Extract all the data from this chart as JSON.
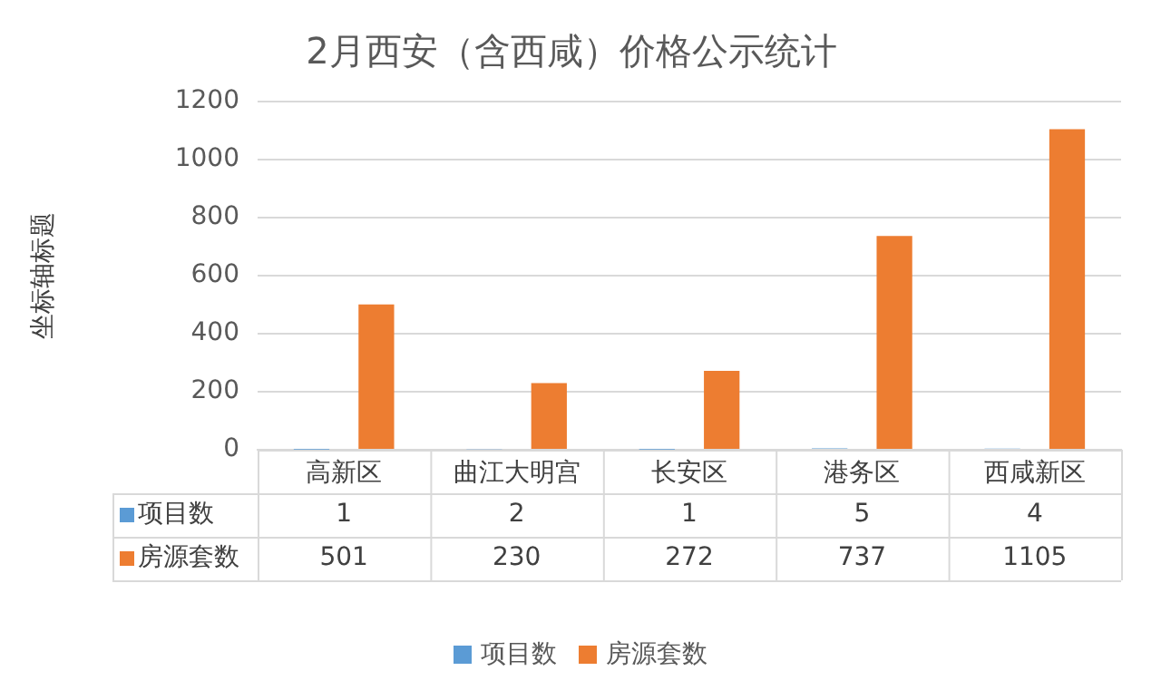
{
  "chart_data": {
    "type": "bar",
    "title": "2月西安（含西咸）价格公示统计",
    "ylabel": "坐标轴标题",
    "categories": [
      "高新区",
      "曲江大明宫",
      "长安区",
      "港务区",
      "西咸新区"
    ],
    "series": [
      {
        "name": "项目数",
        "color": "#5b9bd5",
        "values": [
          1,
          2,
          1,
          5,
          4
        ]
      },
      {
        "name": "房源套数",
        "color": "#ed7d31",
        "values": [
          501,
          230,
          272,
          737,
          1105
        ]
      }
    ],
    "ylim": [
      0,
      1200
    ],
    "yticks": [
      0,
      200,
      400,
      600,
      800,
      1000,
      1200
    ],
    "grid": "y",
    "legend": "bottom",
    "data_labels": true
  }
}
